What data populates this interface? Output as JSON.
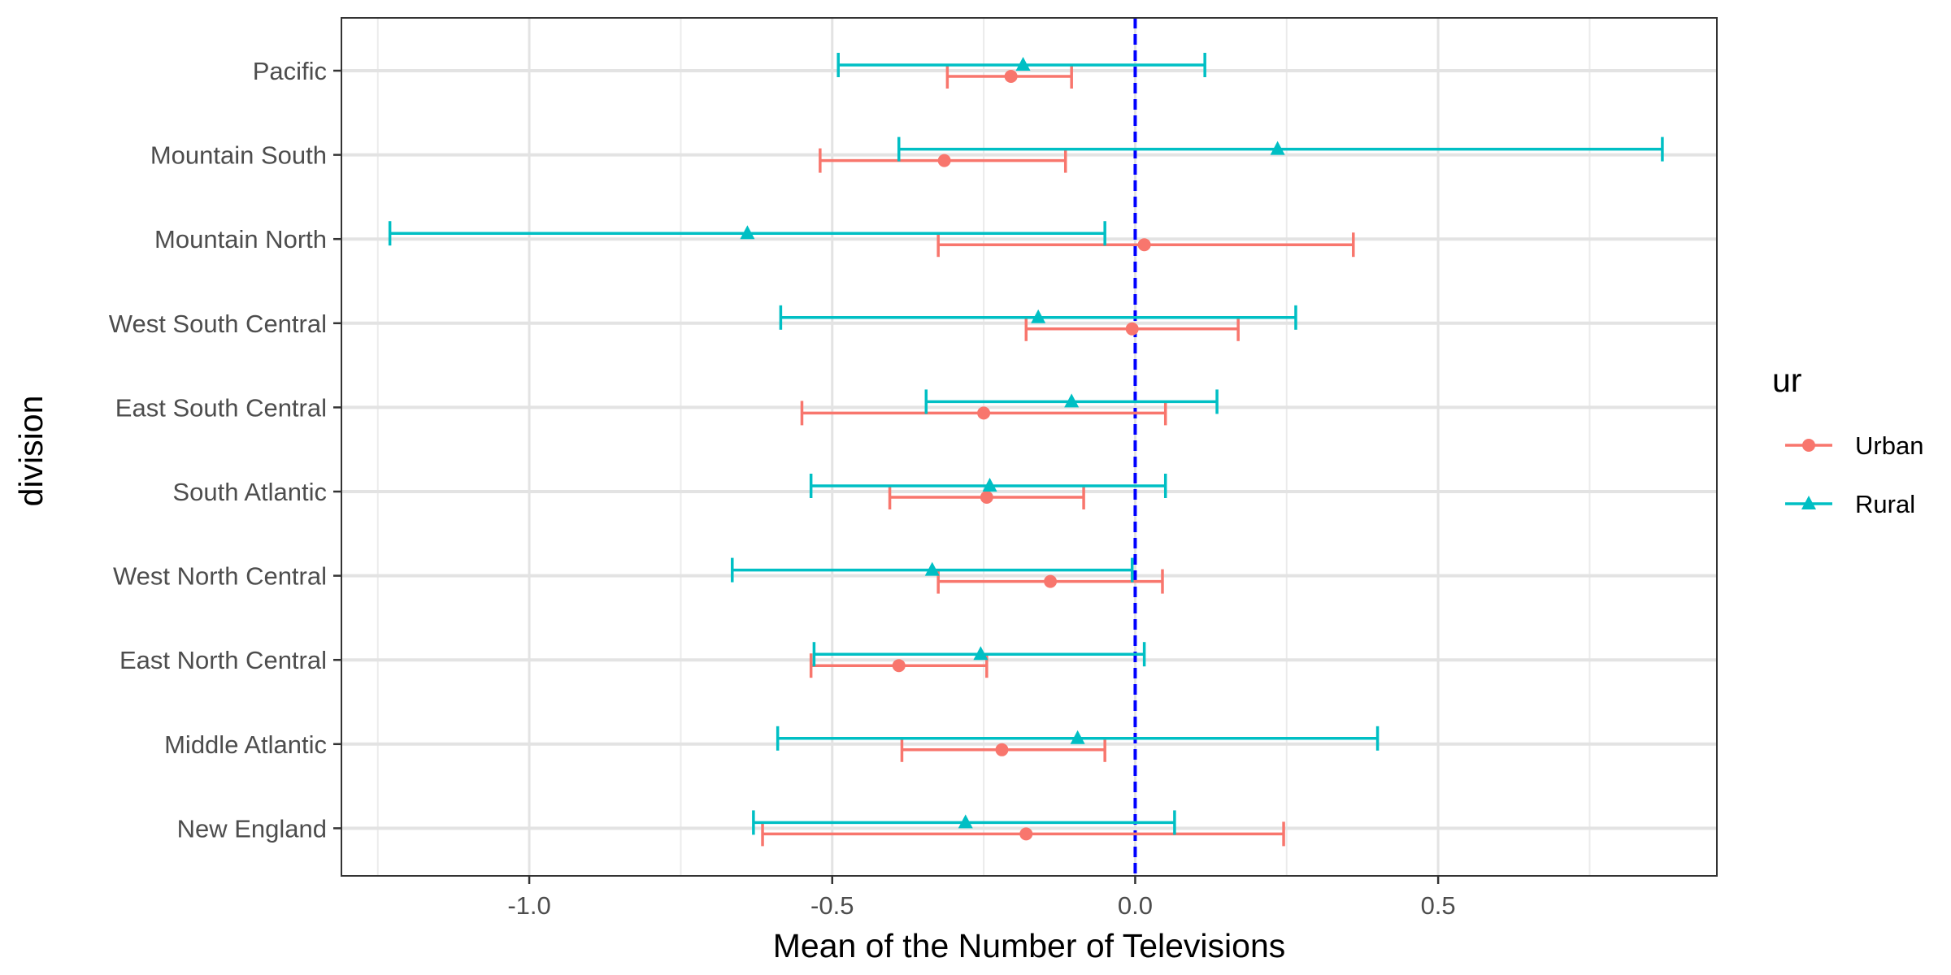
{
  "chart_data": {
    "type": "errorbar",
    "xlabel": "Mean of the Number of Televisions",
    "ylabel": "division",
    "xlim": [
      -1.31,
      0.96
    ],
    "x_ticks": [
      -1.0,
      -0.5,
      0.0,
      0.5
    ],
    "x_tick_labels": [
      "-1.0",
      "-0.5",
      "0.0",
      "0.5"
    ],
    "reference_line": {
      "x": 0,
      "color": "#0000ff",
      "style": "dashed"
    },
    "grid": true,
    "categories": [
      "New England",
      "Middle Atlantic",
      "East North Central",
      "West North Central",
      "South Atlantic",
      "East South Central",
      "West South Central",
      "Mountain North",
      "Mountain South",
      "Pacific"
    ],
    "legend": {
      "title": "ur",
      "position": "right"
    },
    "series": [
      {
        "name": "Urban",
        "color": "#f8766d",
        "marker": "circle",
        "values": [
          -0.18,
          -0.22,
          -0.39,
          -0.14,
          -0.245,
          -0.25,
          -0.005,
          0.015,
          -0.315,
          -0.205
        ],
        "lower": [
          -0.615,
          -0.385,
          -0.535,
          -0.325,
          -0.405,
          -0.55,
          -0.18,
          -0.325,
          -0.52,
          -0.31
        ],
        "upper": [
          0.245,
          -0.05,
          -0.245,
          0.045,
          -0.085,
          0.05,
          0.17,
          0.36,
          -0.115,
          -0.105
        ]
      },
      {
        "name": "Rural",
        "color": "#00bfc4",
        "marker": "triangle",
        "values": [
          -0.28,
          -0.095,
          -0.255,
          -0.335,
          -0.24,
          -0.105,
          -0.16,
          -0.64,
          0.235,
          -0.185
        ],
        "lower": [
          -0.63,
          -0.59,
          -0.53,
          -0.665,
          -0.535,
          -0.345,
          -0.585,
          -1.23,
          -0.39,
          -0.49
        ],
        "upper": [
          0.065,
          0.4,
          0.015,
          -0.005,
          0.05,
          0.135,
          0.265,
          -0.05,
          0.87,
          0.115
        ]
      }
    ]
  }
}
